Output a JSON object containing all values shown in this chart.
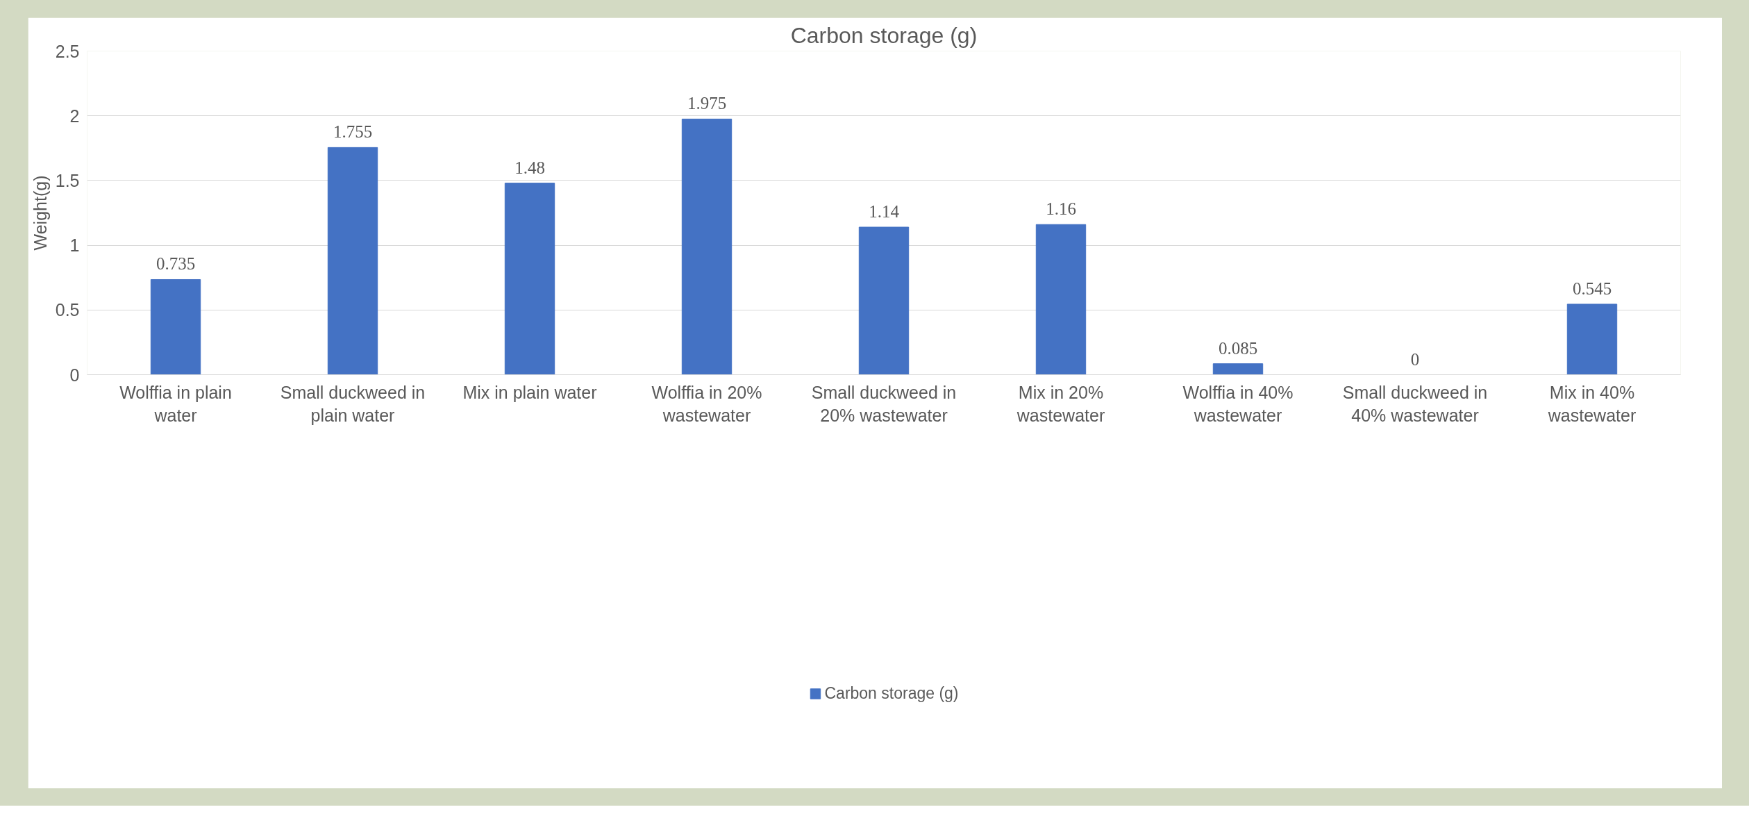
{
  "chart_data": {
    "type": "bar",
    "title": "Carbon storage (g)",
    "ylabel": "Weight(g)",
    "categories": [
      "Wolffia in plain water",
      "Small duckweed in plain water",
      "Mix in plain water",
      "Wolffia in 20% wastewater",
      "Small duckweed in 20% wastewater",
      "Mix in 20% wastewater",
      "Wolffia in 40% wastewater",
      "Small duckweed in 40% wastewater",
      "Mix in 40% wastewater"
    ],
    "series": [
      {
        "name": "Carbon storage (g)",
        "color": "#4472c4",
        "values": [
          0.735,
          1.755,
          1.48,
          1.975,
          1.14,
          1.16,
          0.085,
          0,
          0.545
        ]
      }
    ],
    "ylim": [
      0,
      2.5
    ],
    "yticks": [
      0,
      0.5,
      1,
      1.5,
      2,
      2.5
    ],
    "grid": "y",
    "legend": "bottom",
    "data_labels": true
  }
}
